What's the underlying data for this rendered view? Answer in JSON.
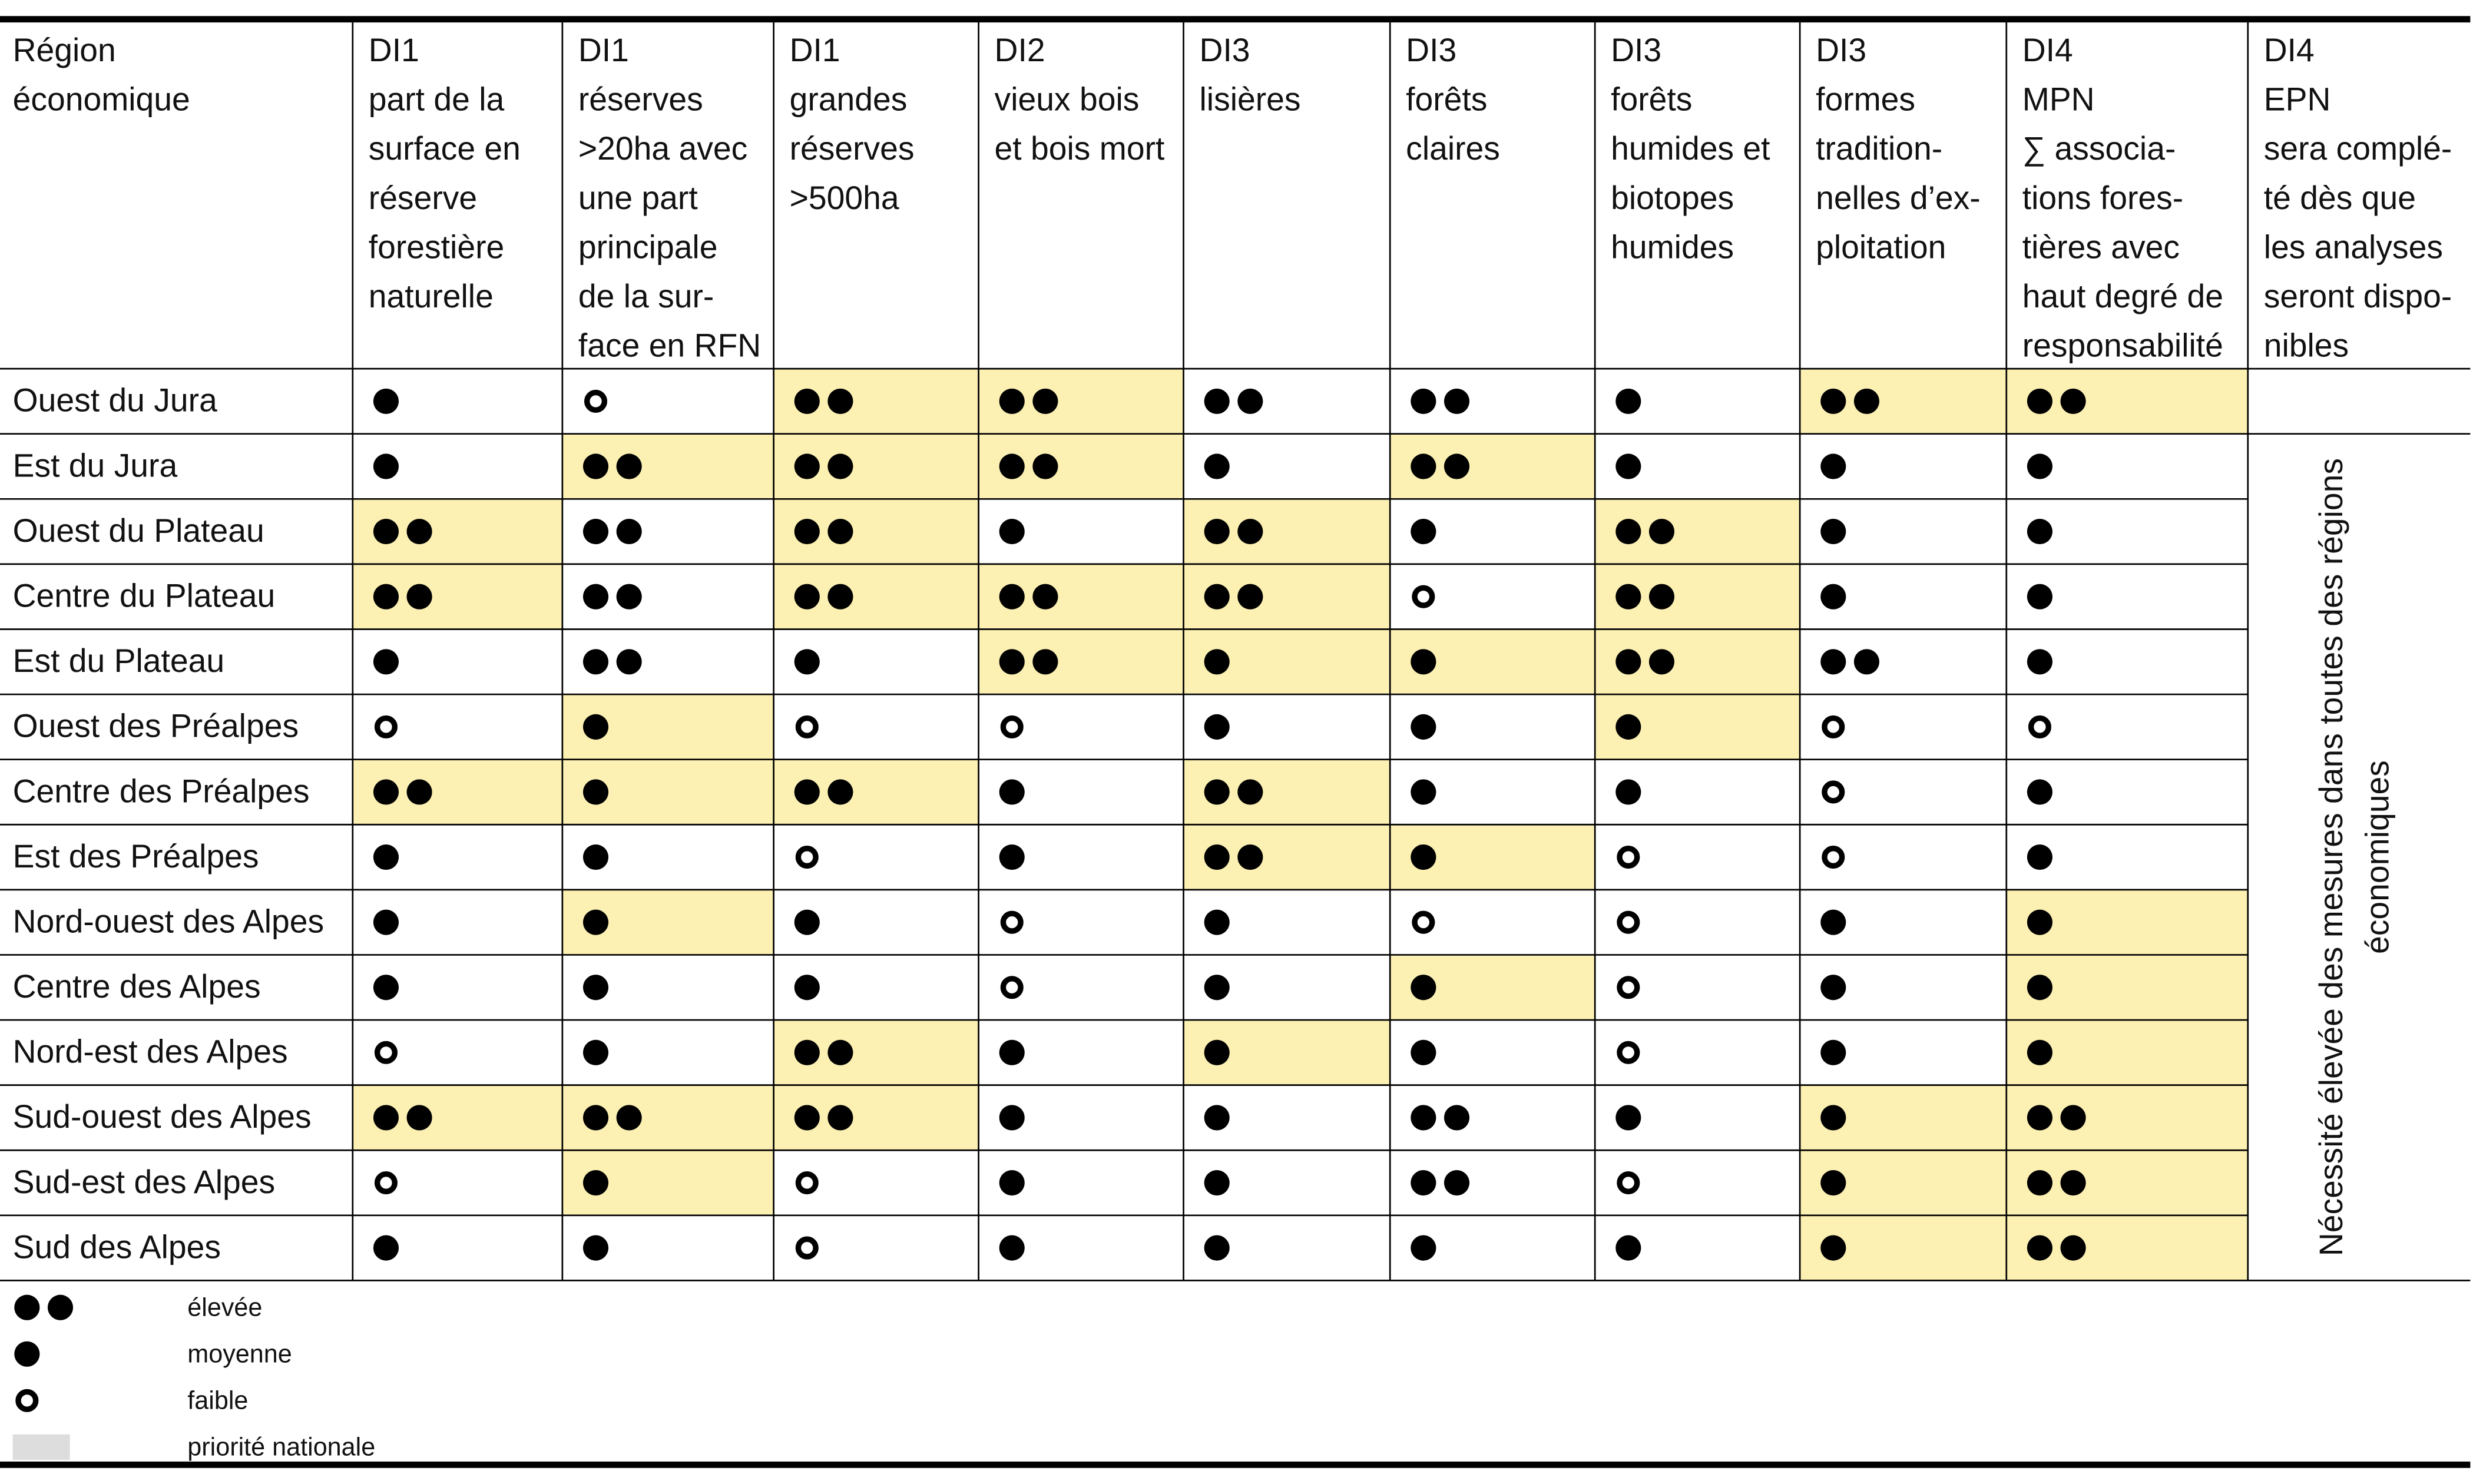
{
  "table": {
    "header": [
      [
        "Région",
        "économique"
      ],
      [
        "DI1",
        "part de la",
        "surface en",
        "réserve",
        "forestière",
        "naturelle"
      ],
      [
        "DI1",
        "réserves",
        ">20ha avec",
        "une part",
        "principale",
        "de la sur-",
        "face en RFN"
      ],
      [
        "DI1",
        "grandes",
        "réserves",
        ">500ha"
      ],
      [
        "DI2",
        "vieux bois",
        "et bois mort"
      ],
      [
        "DI3",
        "lisières"
      ],
      [
        "DI3",
        "forêts",
        "claires"
      ],
      [
        "DI3",
        "forêts",
        "humides et",
        "biotopes",
        "humides"
      ],
      [
        "DI3",
        "formes",
        "tradition-",
        "nelles d’ex-",
        "ploitation"
      ],
      [
        "DI4",
        "MPN",
        "∑ associa-",
        "tions fores-",
        "tières avec",
        "haut degré de",
        "responsabilité"
      ],
      [
        "DI4",
        "EPN",
        "sera complé-",
        "té dès que",
        "les analyses",
        "seront dispo-",
        "nibles"
      ]
    ],
    "last_column_note": [
      "Nécessité élevée des mesures dans toutes des régions",
      "économiques"
    ],
    "rows": [
      {
        "region": "Ouest du Jura",
        "cells": [
          "M",
          "F",
          "E*",
          "E*",
          "E",
          "E",
          "M",
          "E*",
          "E*"
        ]
      },
      {
        "region": "Est du Jura",
        "cells": [
          "M",
          "E*",
          "E*",
          "E*",
          "M",
          "E*",
          "M",
          "M",
          "M"
        ]
      },
      {
        "region": "Ouest du Plateau",
        "cells": [
          "E*",
          "E",
          "E*",
          "M",
          "E*",
          "M",
          "E*",
          "M",
          "M"
        ]
      },
      {
        "region": "Centre du Plateau",
        "cells": [
          "E*",
          "E",
          "E*",
          "E*",
          "E*",
          "F",
          "E*",
          "M",
          "M"
        ]
      },
      {
        "region": "Est du Plateau",
        "cells": [
          "M",
          "E",
          "M",
          "E*",
          "M*",
          "M*",
          "E*",
          "E",
          "M"
        ]
      },
      {
        "region": "Ouest des Préalpes",
        "cells": [
          "F",
          "M*",
          "F",
          "F",
          "M",
          "M",
          "M*",
          "F",
          "F"
        ]
      },
      {
        "region": "Centre des Préalpes",
        "cells": [
          "E*",
          "M*",
          "E*",
          "M",
          "E*",
          "M",
          "M",
          "F",
          "M"
        ]
      },
      {
        "region": "Est des Préalpes",
        "cells": [
          "M",
          "M",
          "F",
          "M",
          "E*",
          "M*",
          "F",
          "F",
          "M"
        ]
      },
      {
        "region": "Nord-ouest des Alpes",
        "cells": [
          "M",
          "M*",
          "M",
          "F",
          "M",
          "F",
          "F",
          "M",
          "M*"
        ]
      },
      {
        "region": "Centre des Alpes",
        "cells": [
          "M",
          "M",
          "M",
          "F",
          "M",
          "M*",
          "F",
          "M",
          "M*"
        ]
      },
      {
        "region": "Nord-est des Alpes",
        "cells": [
          "F",
          "M",
          "E*",
          "M",
          "M*",
          "M",
          "F",
          "M",
          "M*"
        ]
      },
      {
        "region": "Sud-ouest des Alpes",
        "cells": [
          "E*",
          "E*",
          "E*",
          "M",
          "M",
          "E",
          "M",
          "M*",
          "E*"
        ]
      },
      {
        "region": "Sud-est des Alpes",
        "cells": [
          "F",
          "M*",
          "F",
          "M",
          "M",
          "E",
          "F",
          "M*",
          "E*"
        ]
      },
      {
        "region": "Sud des Alpes",
        "cells": [
          "M",
          "M",
          "F",
          "M",
          "M",
          "M",
          "M",
          "M*",
          "E*"
        ]
      }
    ]
  },
  "legend": [
    {
      "symbol": "E",
      "label": "élevée"
    },
    {
      "symbol": "M",
      "label": "moyenne"
    },
    {
      "symbol": "F",
      "label": "faible"
    },
    {
      "symbol": "*",
      "label": "priorité nationale"
    }
  ]
}
